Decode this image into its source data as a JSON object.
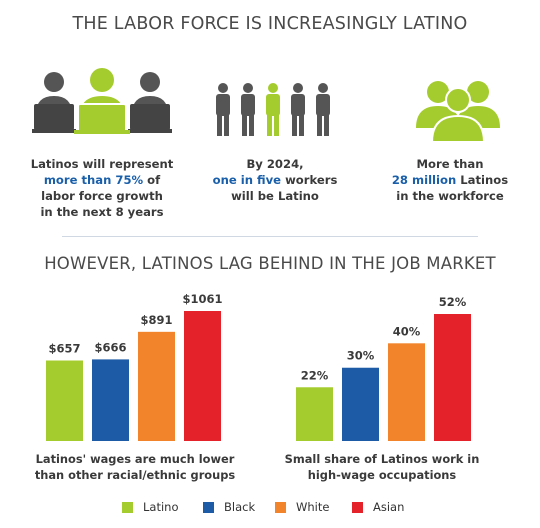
{
  "title_top": "THE LABOR FORCE IS INCREASINGLY LATINO",
  "title_bottom": "HOWEVER, LATINOS LAG BEHIND IN THE JOB MARKET",
  "stats": [
    {
      "pre": "Latinos  will represent",
      "highlight": "more than 75%",
      "post": " of",
      "tail1": "labor force growth",
      "tail2": "in the next 8 years"
    },
    {
      "pre": "By 2024,",
      "highlight": "one in five",
      "post": " workers",
      "tail1": "will be Latino"
    },
    {
      "pre": "More than",
      "highlight": "28 million",
      "post": " Latinos",
      "tail1": "in the workforce"
    }
  ],
  "colors": {
    "Latino": "#a5cc2e",
    "Black": "#1d5ba6",
    "White": "#f2852b",
    "Asian": "#e42229",
    "highlight": "#1a5faa"
  },
  "chart_data": [
    {
      "type": "bar",
      "categories": [
        "Latino",
        "Black",
        "White",
        "Asian"
      ],
      "values": [
        657,
        666,
        891,
        1061
      ],
      "labels": [
        "$657",
        "$666",
        "$891",
        "$1061"
      ],
      "caption_lines": [
        "Latinos' wages are much lower",
        "than other racial/ethnic groups"
      ]
    },
    {
      "type": "bar",
      "categories": [
        "Latino",
        "Black",
        "White",
        "Asian"
      ],
      "values": [
        22,
        30,
        40,
        52
      ],
      "labels": [
        "22%",
        "30%",
        "40%",
        "52%"
      ],
      "caption_lines": [
        "Small share of Latinos work in",
        "high-wage occupations"
      ]
    }
  ],
  "legend": [
    "Latino",
    "Black",
    "White",
    "Asian"
  ]
}
